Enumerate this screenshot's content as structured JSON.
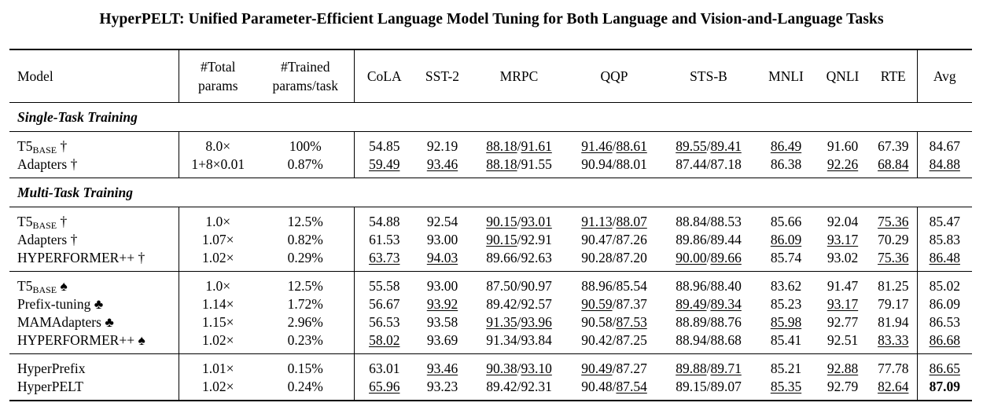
{
  "title": "HyperPELT: Unified Parameter-Efficient Language Model Tuning for Both Language and Vision-and-Language Tasks",
  "headers": {
    "model": "Model",
    "total_l1": "#Total",
    "total_l2": "params",
    "trained_l1": "#Trained",
    "trained_l2": "params/task",
    "cola": "CoLA",
    "sst2": "SST-2",
    "mrpc": "MRPC",
    "qqp": "QQP",
    "stsb": "STS-B",
    "mnli": "MNLI",
    "qnli": "QNLI",
    "rte": "RTE",
    "avg": "Avg"
  },
  "sections": {
    "single": "Single-Task Training",
    "multi": "Multi-Task Training"
  },
  "rows": [
    {
      "model": "T5",
      "sub": "BASE",
      "mark": "†",
      "total": "8.0×",
      "trained": "100%",
      "cola": "54.85",
      "sst2": "92.19",
      "mrpc_a": "88.18",
      "mrpc_b": "91.61",
      "qqp_a": "91.46",
      "qqp_b": "88.61",
      "stsb_a": "89.55",
      "stsb_b": "89.41",
      "mnli": "86.49",
      "qnli": "91.60",
      "rte": "67.39",
      "avg": "84.67"
    },
    {
      "model": "Adapters",
      "sub": "",
      "mark": "†",
      "total": "1+8×0.01",
      "trained": "0.87%",
      "cola": "59.49",
      "sst2": "93.46",
      "mrpc_a": "88.18",
      "mrpc_b": "91.55",
      "qqp_a": "90.94",
      "qqp_b": "88.01",
      "stsb_a": "87.44",
      "stsb_b": "87.18",
      "mnli": "86.38",
      "qnli": "92.26",
      "rte": "68.84",
      "avg": "84.88"
    },
    {
      "model": "T5",
      "sub": "BASE",
      "mark": "†",
      "total": "1.0×",
      "trained": "12.5%",
      "cola": "54.88",
      "sst2": "92.54",
      "mrpc_a": "90.15",
      "mrpc_b": "93.01",
      "qqp_a": "91.13",
      "qqp_b": "88.07",
      "stsb_a": "88.84",
      "stsb_b": "88.53",
      "mnli": "85.66",
      "qnli": "92.04",
      "rte": "75.36",
      "avg": "85.47"
    },
    {
      "model": "Adapters",
      "sub": "",
      "mark": "†",
      "total": "1.07×",
      "trained": "0.82%",
      "cola": "61.53",
      "sst2": "93.00",
      "mrpc_a": "90.15",
      "mrpc_b": "92.91",
      "qqp_a": "90.47",
      "qqp_b": "87.26",
      "stsb_a": "89.86",
      "stsb_b": "89.44",
      "mnli": "86.09",
      "qnli": "93.17",
      "rte": "70.29",
      "avg": "85.83"
    },
    {
      "model": "HYPERFORMER++",
      "sub": "",
      "mark": "†",
      "total": "1.02×",
      "trained": "0.29%",
      "cola": "63.73",
      "sst2": "94.03",
      "mrpc_a": "89.66",
      "mrpc_b": "92.63",
      "qqp_a": "90.28",
      "qqp_b": "87.20",
      "stsb_a": "90.00",
      "stsb_b": "89.66",
      "mnli": "85.74",
      "qnli": "93.02",
      "rte": "75.36",
      "avg": "86.48"
    },
    {
      "model": "T5",
      "sub": "BASE",
      "mark": "♠",
      "total": "1.0×",
      "trained": "12.5%",
      "cola": "55.58",
      "sst2": "93.00",
      "mrpc_a": "87.50",
      "mrpc_b": "90.97",
      "qqp_a": "88.96",
      "qqp_b": "85.54",
      "stsb_a": "88.96",
      "stsb_b": "88.40",
      "mnli": "83.62",
      "qnli": "91.47",
      "rte": "81.25",
      "avg": "85.02"
    },
    {
      "model": "Prefix-tuning",
      "sub": "",
      "mark": "♣",
      "total": "1.14×",
      "trained": "1.72%",
      "cola": "56.67",
      "sst2": "93.92",
      "mrpc_a": "89.42",
      "mrpc_b": "92.57",
      "qqp_a": "90.59",
      "qqp_b": "87.37",
      "stsb_a": "89.49",
      "stsb_b": "89.34",
      "mnli": "85.23",
      "qnli": "93.17",
      "rte": "79.17",
      "avg": "86.09"
    },
    {
      "model": "MAMAdapters",
      "sub": "",
      "mark": "♣",
      "total": "1.15×",
      "trained": "2.96%",
      "cola": "56.53",
      "sst2": "93.58",
      "mrpc_a": "91.35",
      "mrpc_b": "93.96",
      "qqp_a": "90.58",
      "qqp_b": "87.53",
      "stsb_a": "88.89",
      "stsb_b": "88.76",
      "mnli": "85.98",
      "qnli": "92.77",
      "rte": "81.94",
      "avg": "86.53"
    },
    {
      "model": "HYPERFORMER++",
      "sub": "",
      "mark": "♠",
      "total": "1.02×",
      "trained": "0.23%",
      "cola": "58.02",
      "sst2": "93.69",
      "mrpc_a": "91.34",
      "mrpc_b": "93.84",
      "qqp_a": "90.42",
      "qqp_b": "87.25",
      "stsb_a": "88.94",
      "stsb_b": "88.68",
      "mnli": "85.41",
      "qnli": "92.51",
      "rte": "83.33",
      "avg": "86.68"
    },
    {
      "model": "HyperPrefix",
      "sub": "",
      "mark": "",
      "total": "1.01×",
      "trained": "0.15%",
      "cola": "63.01",
      "sst2": "93.46",
      "mrpc_a": "90.38",
      "mrpc_b": "93.10",
      "qqp_a": "90.49",
      "qqp_b": "87.27",
      "stsb_a": "89.88",
      "stsb_b": "89.71",
      "mnli": "85.21",
      "qnli": "92.88",
      "rte": "77.78",
      "avg": "86.65"
    },
    {
      "model": "HyperPELT",
      "sub": "",
      "mark": "",
      "total": "1.02×",
      "trained": "0.24%",
      "cola": "65.96",
      "sst2": "93.23",
      "mrpc_a": "89.42",
      "mrpc_b": "92.31",
      "qqp_a": "90.48",
      "qqp_b": "87.54",
      "stsb_a": "89.15",
      "stsb_b": "89.07",
      "mnli": "85.35",
      "qnli": "92.79",
      "rte": "82.64",
      "avg": "87.09"
    }
  ]
}
